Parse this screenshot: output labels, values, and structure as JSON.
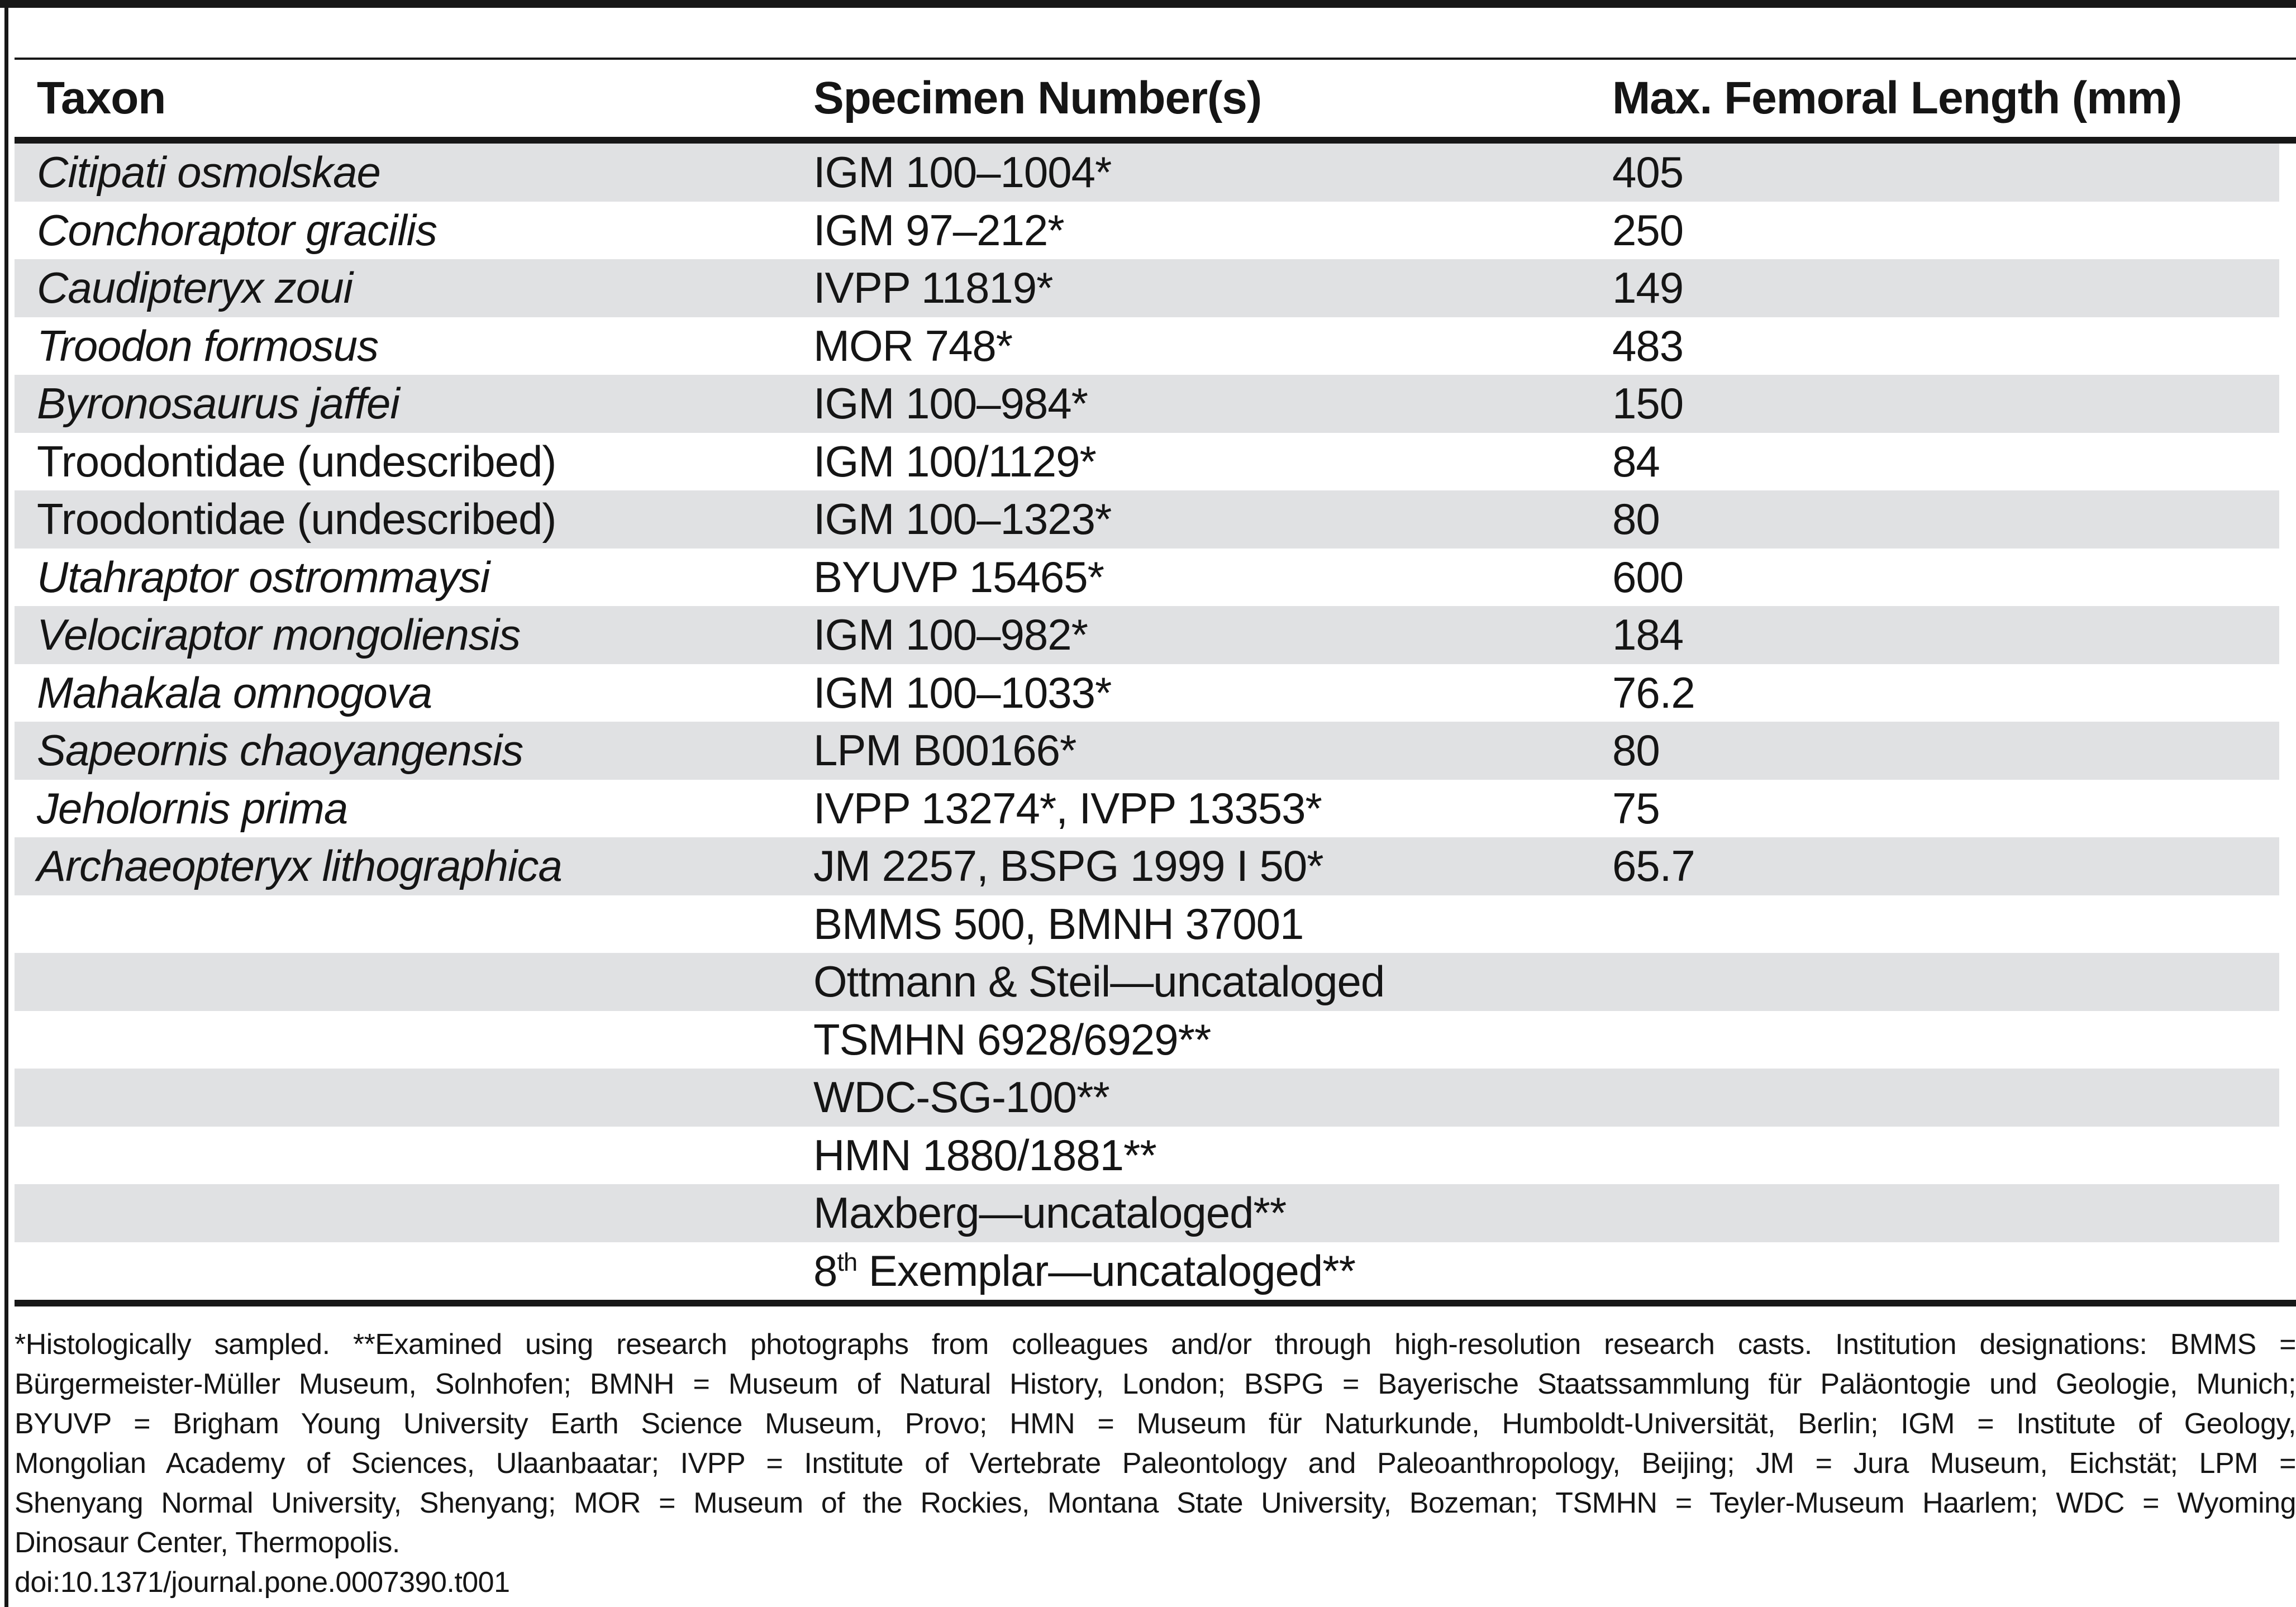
{
  "figure": {
    "doi": "doi:10.1371/journal.pone.0007390.t001"
  },
  "table": {
    "columns": [
      {
        "label": "Taxon"
      },
      {
        "label": "Specimen Number(s)"
      },
      {
        "label": "Max. Femoral Length (mm)"
      }
    ],
    "rows": [
      {
        "taxon": "Citipati osmolskae",
        "italic": true,
        "specimen": "IGM 100–1004*",
        "length": "405",
        "shaded": true
      },
      {
        "taxon": "Conchoraptor gracilis",
        "italic": true,
        "specimen": "IGM 97–212*",
        "length": "250",
        "shaded": false
      },
      {
        "taxon": "Caudipteryx zoui",
        "italic": true,
        "specimen": "IVPP 11819*",
        "length": "149",
        "shaded": true
      },
      {
        "taxon": "Troodon formosus",
        "italic": true,
        "specimen": "MOR 748*",
        "length": "483",
        "shaded": false
      },
      {
        "taxon": "Byronosaurus jaffei",
        "italic": true,
        "specimen": "IGM 100–984*",
        "length": "150",
        "shaded": true
      },
      {
        "taxon": "Troodontidae (undescribed)",
        "italic": false,
        "specimen": "IGM 100/1129*",
        "length": "84",
        "shaded": false
      },
      {
        "taxon": "Troodontidae (undescribed)",
        "italic": false,
        "specimen": "IGM 100–1323*",
        "length": "80",
        "shaded": true
      },
      {
        "taxon": "Utahraptor ostrommaysi",
        "italic": true,
        "specimen": "BYUVP 15465*",
        "length": "600",
        "shaded": false
      },
      {
        "taxon": "Velociraptor mongoliensis",
        "italic": true,
        "specimen": "IGM 100–982*",
        "length": "184",
        "shaded": true
      },
      {
        "taxon": "Mahakala omnogova",
        "italic": true,
        "specimen": "IGM 100–1033*",
        "length": "76.2",
        "shaded": false
      },
      {
        "taxon": "Sapeornis chaoyangensis",
        "italic": true,
        "specimen": "LPM B00166*",
        "length": "80",
        "shaded": true
      },
      {
        "taxon": "Jeholornis prima",
        "italic": true,
        "specimen": "IVPP 13274*, IVPP 13353*",
        "length": "75",
        "shaded": false
      },
      {
        "taxon": "Archaeopteryx lithographica",
        "italic": true,
        "specimen": "JM 2257, BSPG 1999 I 50*",
        "length": "65.7",
        "shaded": true
      },
      {
        "taxon": "",
        "italic": false,
        "specimen": "BMMS 500, BMNH 37001",
        "length": "",
        "shaded": false
      },
      {
        "taxon": "",
        "italic": false,
        "specimen": "Ottmann & Steil—uncataloged",
        "length": "",
        "shaded": true
      },
      {
        "taxon": "",
        "italic": false,
        "specimen": "TSMHN 6928/6929**",
        "length": "",
        "shaded": false
      },
      {
        "taxon": "",
        "italic": false,
        "specimen": "WDC-SG-100**",
        "length": "",
        "shaded": true
      },
      {
        "taxon": "",
        "italic": false,
        "specimen": "HMN 1880/1881**",
        "length": "",
        "shaded": false
      },
      {
        "taxon": "",
        "italic": false,
        "specimen": "Maxberg—uncataloged**",
        "length": "",
        "shaded": true
      },
      {
        "taxon": "",
        "italic": false,
        "specimen": "8",
        "specimen_sup": "th",
        "specimen_post": " Exemplar—uncataloged**",
        "length": "",
        "shaded": false
      }
    ]
  },
  "footnote": {
    "lines": [
      {
        "text": "*Histologically sampled. **Examined using research photographs from colleagues and/or through high-resolution research casts. Institution designations: BMMS =",
        "justify": true
      },
      {
        "text": "Bürgermeister-Müller Museum, Solnhofen; BMNH = Museum of Natural History, London; BSPG = Bayerische Staatssammlung für Paläontogie und Geologie, Munich;",
        "justify": true
      },
      {
        "text": "BYUVP = Brigham Young University Earth Science Museum, Provo; HMN = Museum für Naturkunde, Humboldt-Universität, Berlin; IGM = Institute of Geology,",
        "justify": true
      },
      {
        "text": "Mongolian Academy of Sciences, Ulaanbaatar; IVPP = Institute of Vertebrate Paleontology and Paleoanthropology, Beijing; JM = Jura Museum, Eichstät; LPM =",
        "justify": true
      },
      {
        "text": "Shenyang Normal University, Shenyang; MOR = Museum of the Rockies, Montana State University, Bozeman; TSMHN = Teyler-Museum Haarlem; WDC = Wyoming",
        "justify": true
      },
      {
        "text": "Dinosaur Center, Thermopolis.",
        "justify": false
      }
    ]
  },
  "colors": {
    "stripe": "#e0e1e3",
    "rule": "#171717",
    "text": "#151515"
  }
}
